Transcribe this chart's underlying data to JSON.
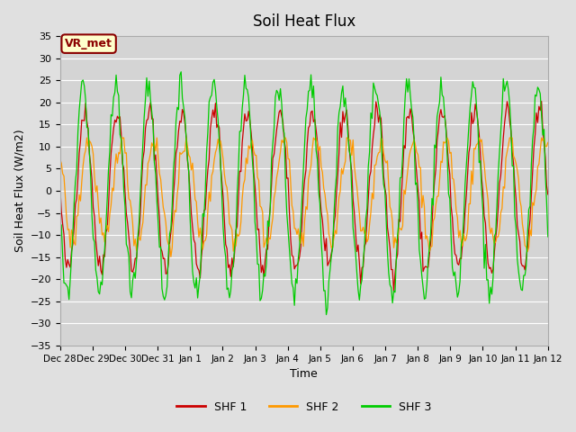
{
  "title": "Soil Heat Flux",
  "xlabel": "Time",
  "ylabel": "Soil Heat Flux (W/m2)",
  "ylim": [
    -35,
    35
  ],
  "yticks": [
    -35,
    -30,
    -25,
    -20,
    -15,
    -10,
    -5,
    0,
    5,
    10,
    15,
    20,
    25,
    30,
    35
  ],
  "xtick_labels": [
    "Dec 28",
    "Dec 29",
    "Dec 30",
    "Dec 31",
    "Jan 1",
    "Jan 2",
    "Jan 3",
    "Jan 4",
    "Jan 5",
    "Jan 6",
    "Jan 7",
    "Jan 8",
    "Jan 9",
    "Jan 10",
    "Jan 11",
    "Jan 12"
  ],
  "colors": {
    "SHF 1": "#cc0000",
    "SHF 2": "#ff9900",
    "SHF 3": "#00cc00"
  },
  "legend_labels": [
    "SHF 1",
    "SHF 2",
    "SHF 3"
  ],
  "annotation_text": "VR_met",
  "annotation_fg": "#8B0000",
  "annotation_bg": "#ffffcc",
  "annotation_edge": "#8B0000",
  "bg_color": "#e0e0e0",
  "plot_bg_color": "#d4d4d4",
  "grid_color": "#ffffff",
  "n_points": 384
}
